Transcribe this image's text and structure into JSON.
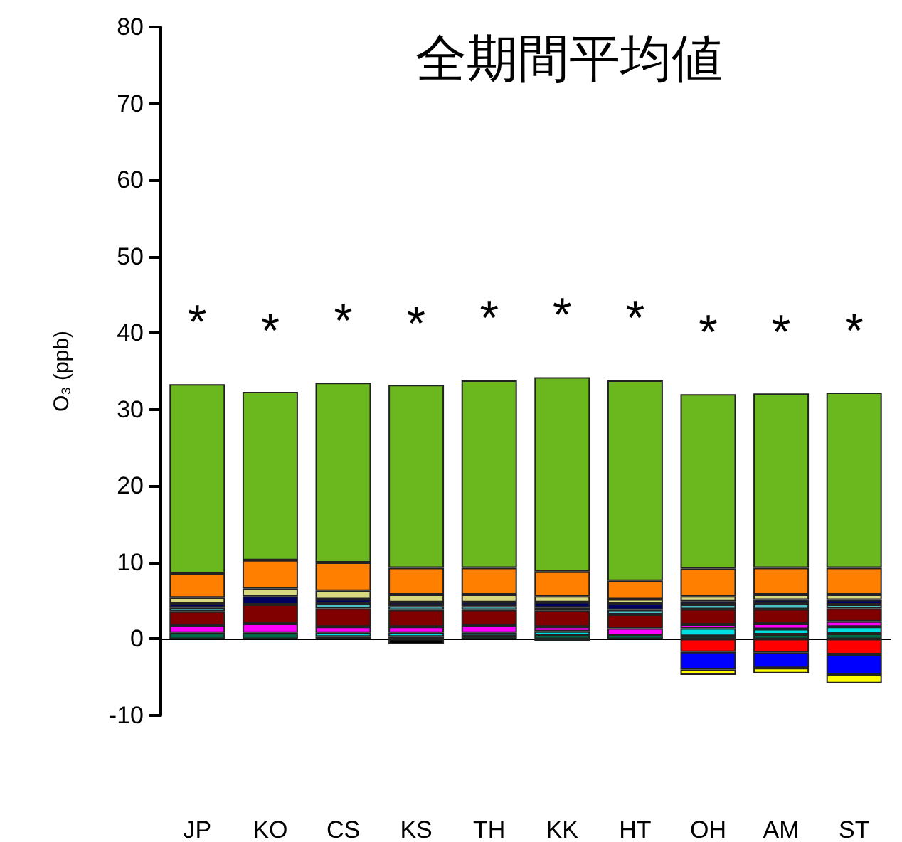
{
  "chart_data": {
    "type": "bar",
    "stacked": true,
    "title": "全期間平均値",
    "ylabel": "O₃ (ppb)",
    "categories": [
      "JP",
      "KO",
      "CS",
      "KS",
      "TH",
      "KK",
      "HT",
      "OH",
      "AM",
      "ST"
    ],
    "series": [
      {
        "color": "#006848",
        "values": [
          0.8,
          0.8,
          0.3,
          0.3,
          0.4,
          0.5,
          0.5,
          0.4,
          0.6,
          0.7
        ]
      },
      {
        "color": "#00e0e0",
        "values": [
          null,
          null,
          0.5,
          0.5,
          0.4,
          0.5,
          null,
          1.0,
          0.7,
          0.9
        ]
      },
      {
        "color": "#ff00ff",
        "values": [
          1.0,
          1.2,
          0.8,
          0.8,
          1.0,
          0.6,
          0.9,
          0.5,
          0.7,
          0.7
        ]
      },
      {
        "color": "#800000",
        "values": [
          1.8,
          2.5,
          2.4,
          2.2,
          2.0,
          2.1,
          1.8,
          2.0,
          1.9,
          1.7
        ]
      },
      {
        "color": "#50c0c8",
        "values": [
          0.5,
          null,
          0.6,
          0.5,
          0.5,
          0.4,
          0.6,
          0.6,
          0.7,
          0.5
        ]
      },
      {
        "color": "#000060",
        "values": [
          0.5,
          1.1,
          0.6,
          0.5,
          0.5,
          0.7,
          0.8,
          0.4,
          0.5,
          0.6
        ]
      },
      {
        "color": "#d8d880",
        "values": [
          0.8,
          1.0,
          1.1,
          1.0,
          1.0,
          0.8,
          0.6,
          0.7,
          0.7,
          0.7
        ]
      },
      {
        "color": "#ff8000",
        "values": [
          3.2,
          3.7,
          3.7,
          3.5,
          3.5,
          3.2,
          2.4,
          3.6,
          3.5,
          3.5
        ]
      },
      {
        "color": "#6bb81e",
        "values": [
          24.7,
          22.0,
          23.5,
          23.9,
          24.5,
          25.4,
          26.2,
          22.8,
          22.8,
          22.9
        ]
      },
      {
        "color": "#000000",
        "values": [
          null,
          null,
          null,
          -0.7,
          null,
          -0.3,
          null,
          null,
          null,
          null
        ]
      },
      {
        "color": "#ff0000",
        "values": [
          null,
          null,
          null,
          null,
          null,
          null,
          null,
          -1.7,
          -1.8,
          -2.0
        ]
      },
      {
        "color": "#0000ff",
        "values": [
          null,
          null,
          null,
          null,
          null,
          null,
          null,
          -2.3,
          -2.0,
          -2.7
        ]
      },
      {
        "color": "#ffff00",
        "values": [
          null,
          null,
          null,
          null,
          null,
          null,
          null,
          -0.7,
          -0.7,
          -1.1
        ]
      }
    ],
    "ylim": [
      -10,
      80
    ],
    "yticks": [
      -10,
      0,
      10,
      20,
      30,
      40,
      50,
      60,
      70,
      80
    ],
    "annotations": [
      "*",
      "*",
      "*",
      "*",
      "*",
      "*",
      "*",
      "*",
      "*",
      "*"
    ]
  }
}
